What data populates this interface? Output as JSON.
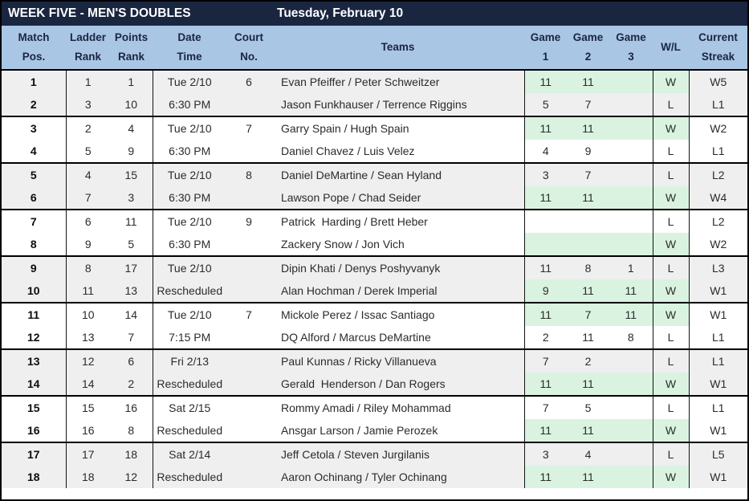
{
  "title_bar": {
    "title": "WEEK FIVE - MEN'S DOUBLES",
    "date": "Tuesday, February 10"
  },
  "colors": {
    "navy": "#1a2540",
    "header_blue": "#a9c7e5",
    "win_green": "#d9f3e0",
    "stripe_gray": "#efefef",
    "border_black": "#000000"
  },
  "columns": {
    "match": "Match\nPos.",
    "ladder": "Ladder\nRank",
    "points": "Points\nRank",
    "date": "Date\nTime",
    "court": "Court\nNo.",
    "teams": "Teams",
    "game1": "Game\n1",
    "game2": "Game\n2",
    "game3": "Game\n3",
    "wl": "W/L",
    "streak": "Current\nStreak"
  },
  "matches": [
    {
      "rows": [
        {
          "pos": "1",
          "ladder": "1",
          "points": "1",
          "date": "Tue 2/10",
          "court": "6",
          "team": "Evan Pfeiffer / Peter Schweitzer",
          "games": [
            "11",
            "11",
            ""
          ],
          "wl": "W",
          "streak": "W5",
          "win": true
        },
        {
          "pos": "2",
          "ladder": "3",
          "points": "10",
          "date": "6:30 PM",
          "court": "",
          "team": "Jason Funkhauser / Terrence Riggins",
          "games": [
            "5",
            "7",
            ""
          ],
          "wl": "L",
          "streak": "L1",
          "win": false
        }
      ]
    },
    {
      "rows": [
        {
          "pos": "3",
          "ladder": "2",
          "points": "4",
          "date": "Tue 2/10",
          "court": "7",
          "team": "Garry Spain / Hugh Spain",
          "games": [
            "11",
            "11",
            ""
          ],
          "wl": "W",
          "streak": "W2",
          "win": true
        },
        {
          "pos": "4",
          "ladder": "5",
          "points": "9",
          "date": "6:30 PM",
          "court": "",
          "team": "Daniel Chavez / Luis Velez",
          "games": [
            "4",
            "9",
            ""
          ],
          "wl": "L",
          "streak": "L1",
          "win": false
        }
      ]
    },
    {
      "rows": [
        {
          "pos": "5",
          "ladder": "4",
          "points": "15",
          "date": "Tue 2/10",
          "court": "8",
          "team": "Daniel DeMartine / Sean Hyland",
          "games": [
            "3",
            "7",
            ""
          ],
          "wl": "L",
          "streak": "L2",
          "win": false
        },
        {
          "pos": "6",
          "ladder": "7",
          "points": "3",
          "date": "6:30 PM",
          "court": "",
          "team": "Lawson Pope / Chad Seider",
          "games": [
            "11",
            "11",
            ""
          ],
          "wl": "W",
          "streak": "W4",
          "win": true
        }
      ]
    },
    {
      "rows": [
        {
          "pos": "7",
          "ladder": "6",
          "points": "11",
          "date": "Tue 2/10",
          "court": "9",
          "team": "Patrick  Harding / Brett Heber",
          "games": [
            "",
            "",
            ""
          ],
          "wl": "L",
          "streak": "L2",
          "win": false
        },
        {
          "pos": "8",
          "ladder": "9",
          "points": "5",
          "date": "6:30 PM",
          "court": "",
          "team": "Zackery Snow / Jon Vich",
          "games": [
            "",
            "",
            ""
          ],
          "wl": "W",
          "streak": "W2",
          "win": true
        }
      ]
    },
    {
      "rows": [
        {
          "pos": "9",
          "ladder": "8",
          "points": "17",
          "date": "Tue 2/10",
          "court": "",
          "team": "Dipin Khati / Denys Poshyvanyk",
          "games": [
            "11",
            "8",
            "1"
          ],
          "wl": "L",
          "streak": "L3",
          "win": false
        },
        {
          "pos": "10",
          "ladder": "11",
          "points": "13",
          "date": "Rescheduled",
          "court": "",
          "team": "Alan Hochman / Derek Imperial",
          "games": [
            "9",
            "11",
            "11"
          ],
          "wl": "W",
          "streak": "W1",
          "win": true
        }
      ]
    },
    {
      "rows": [
        {
          "pos": "11",
          "ladder": "10",
          "points": "14",
          "date": "Tue 2/10",
          "court": "7",
          "team": "Mickole Perez / Issac Santiago",
          "games": [
            "11",
            "7",
            "11"
          ],
          "wl": "W",
          "streak": "W1",
          "win": true
        },
        {
          "pos": "12",
          "ladder": "13",
          "points": "7",
          "date": "7:15 PM",
          "court": "",
          "team": "DQ Alford / Marcus DeMartine",
          "games": [
            "2",
            "11",
            "8"
          ],
          "wl": "L",
          "streak": "L1",
          "win": false
        }
      ]
    },
    {
      "rows": [
        {
          "pos": "13",
          "ladder": "12",
          "points": "6",
          "date": "Fri 2/13",
          "court": "",
          "team": "Paul Kunnas / Ricky Villanueva",
          "games": [
            "7",
            "2",
            ""
          ],
          "wl": "L",
          "streak": "L1",
          "win": false
        },
        {
          "pos": "14",
          "ladder": "14",
          "points": "2",
          "date": "Rescheduled",
          "court": "",
          "team": "Gerald  Henderson / Dan Rogers",
          "games": [
            "11",
            "11",
            ""
          ],
          "wl": "W",
          "streak": "W1",
          "win": true
        }
      ]
    },
    {
      "rows": [
        {
          "pos": "15",
          "ladder": "15",
          "points": "16",
          "date": "Sat 2/15",
          "court": "",
          "team": "Rommy Amadi / Riley Mohammad",
          "games": [
            "7",
            "5",
            ""
          ],
          "wl": "L",
          "streak": "L1",
          "win": false
        },
        {
          "pos": "16",
          "ladder": "16",
          "points": "8",
          "date": "Rescheduled",
          "court": "",
          "team": "Ansgar Larson / Jamie Perozek",
          "games": [
            "11",
            "11",
            ""
          ],
          "wl": "W",
          "streak": "W1",
          "win": true
        }
      ]
    },
    {
      "rows": [
        {
          "pos": "17",
          "ladder": "17",
          "points": "18",
          "date": "Sat 2/14",
          "court": "",
          "team": "Jeff Cetola / Steven Jurgilanis",
          "games": [
            "3",
            "4",
            ""
          ],
          "wl": "L",
          "streak": "L5",
          "win": false
        },
        {
          "pos": "18",
          "ladder": "18",
          "points": "12",
          "date": "Rescheduled",
          "court": "",
          "team": "Aaron Ochinang / Tyler Ochinang",
          "games": [
            "11",
            "11",
            ""
          ],
          "wl": "W",
          "streak": "W1",
          "win": true
        }
      ]
    }
  ]
}
